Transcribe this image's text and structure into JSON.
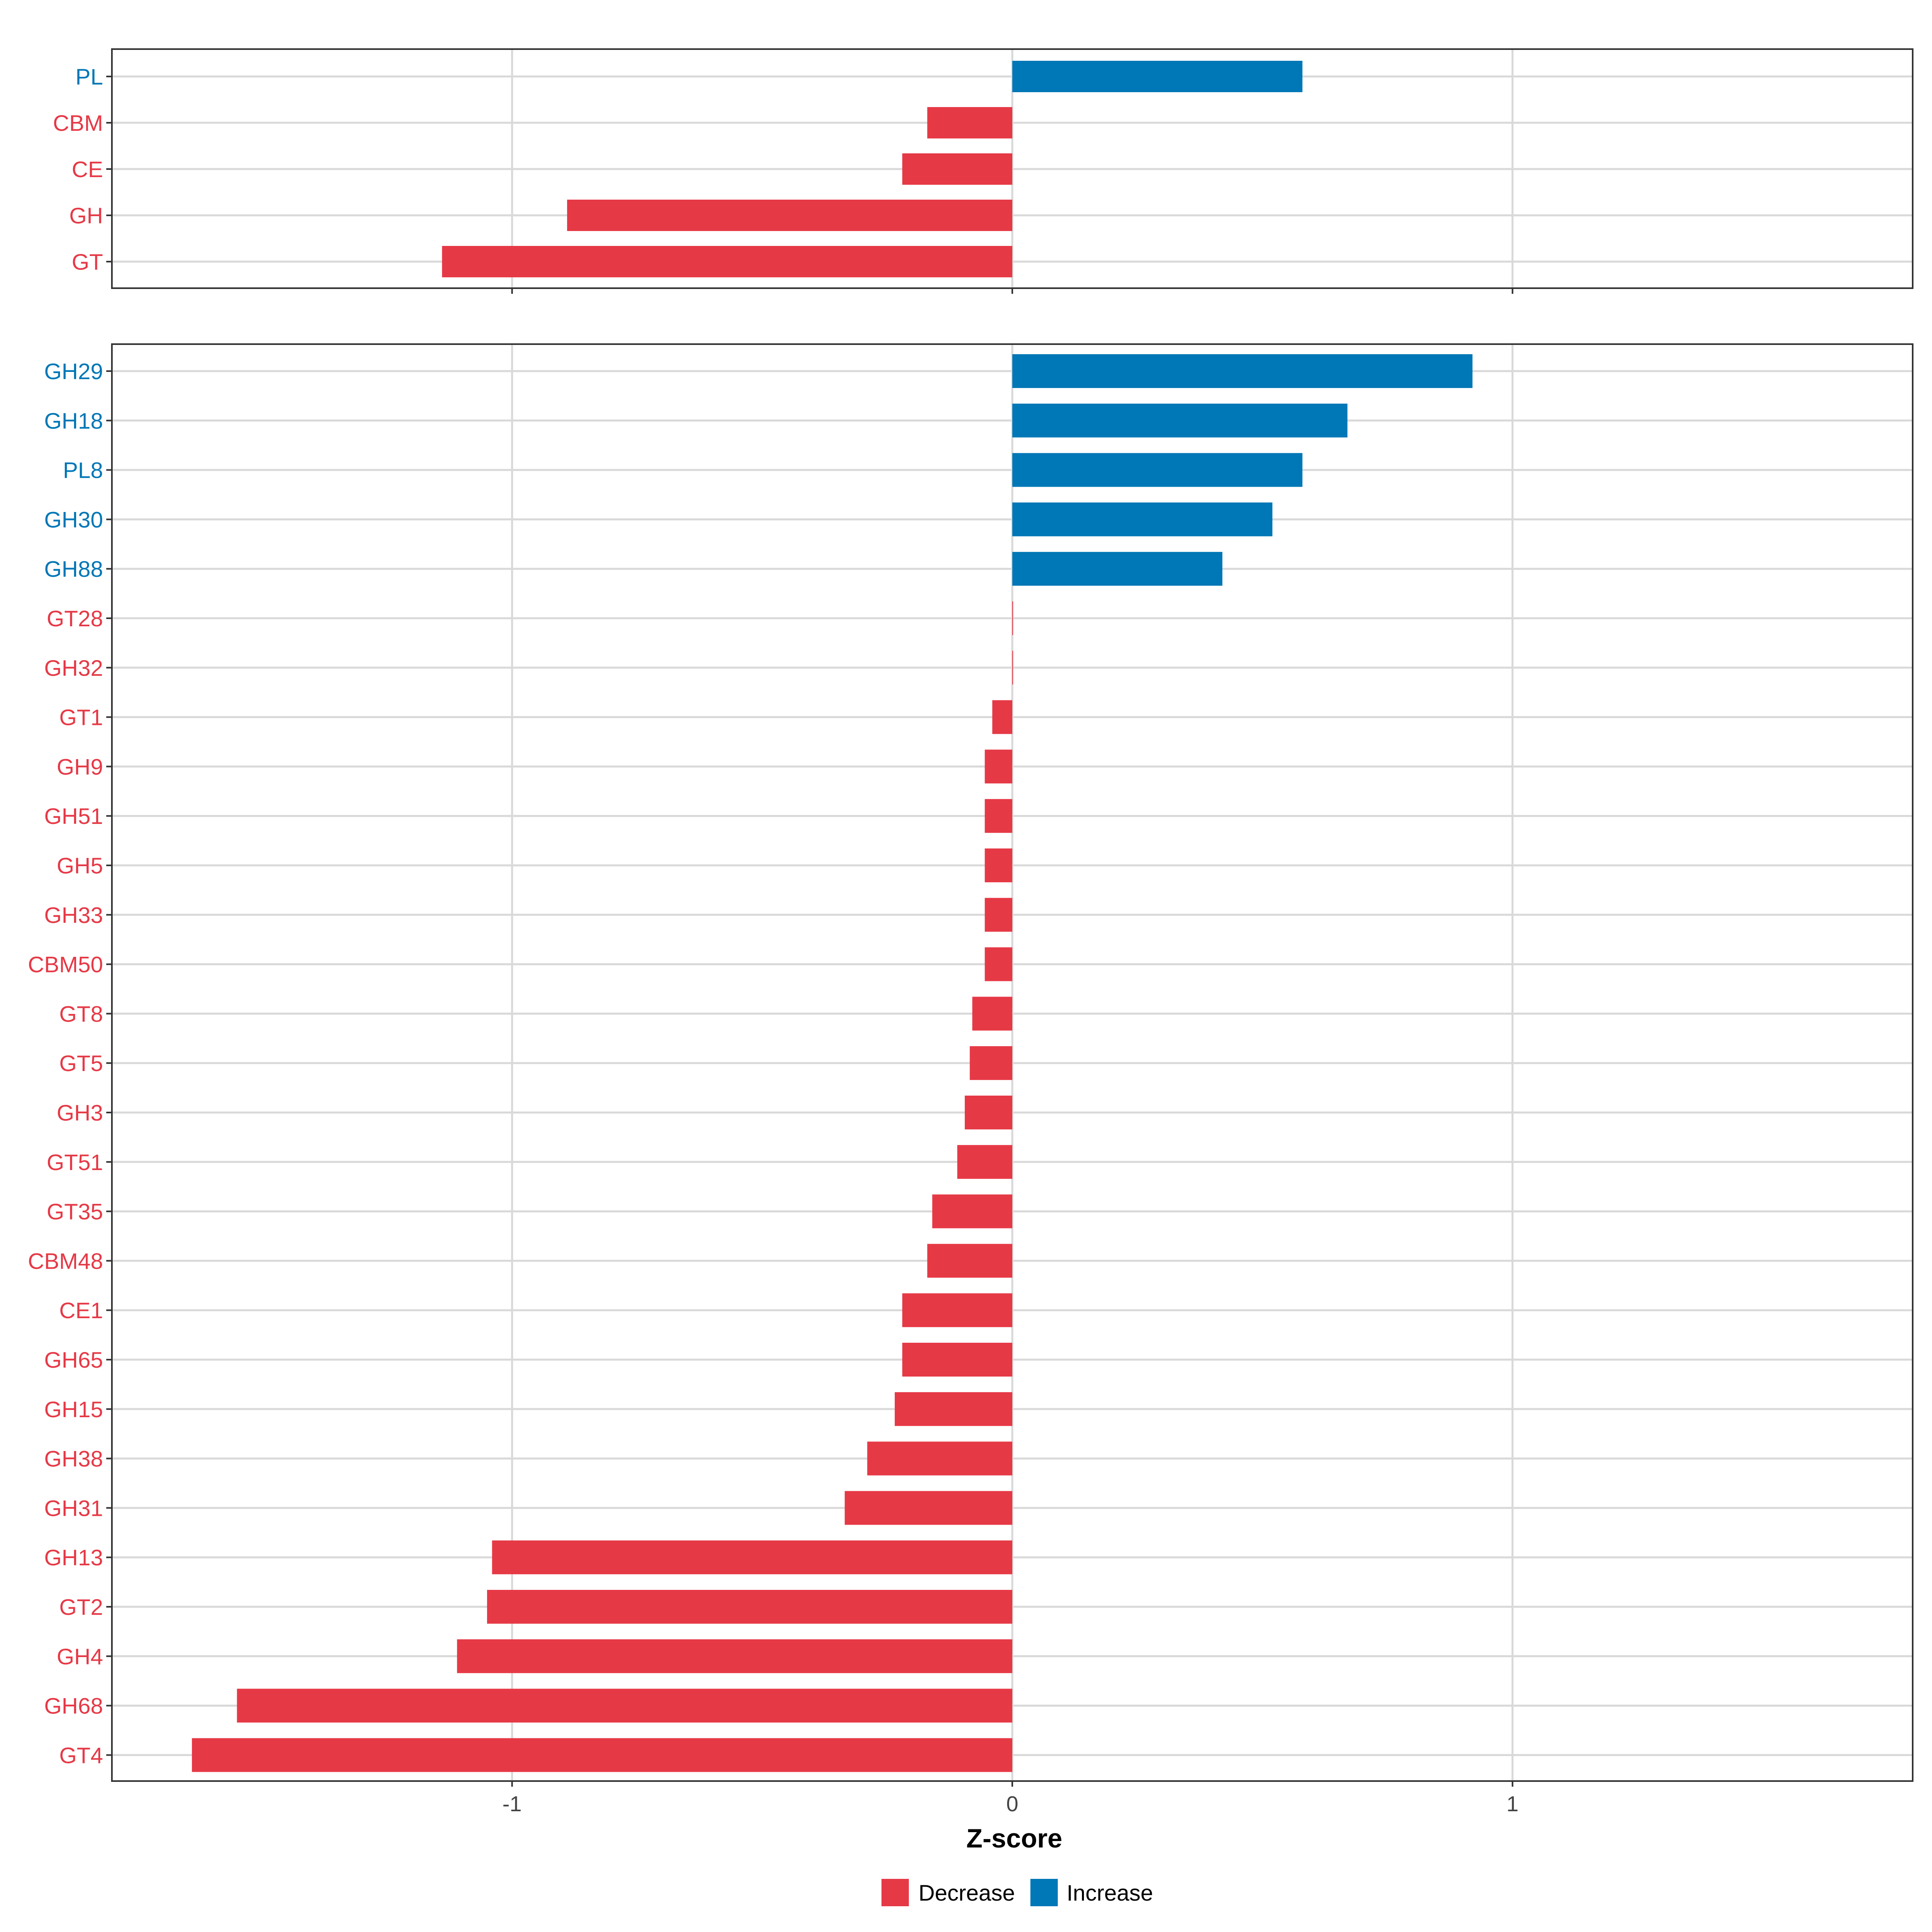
{
  "chart_data": [
    {
      "type": "bar",
      "orientation": "horizontal",
      "panel": "top",
      "categories": [
        "PL",
        "CBM",
        "CE",
        "GH",
        "GT"
      ],
      "values": [
        0.58,
        -0.17,
        -0.22,
        -0.89,
        -1.14
      ],
      "xlim": [
        -1.8,
        1.8
      ],
      "xticks": [
        -1,
        0,
        1
      ],
      "grid": true
    },
    {
      "type": "bar",
      "orientation": "horizontal",
      "panel": "bottom",
      "categories": [
        "GH29",
        "GH18",
        "PL8",
        "GH30",
        "GH88",
        "GT28",
        "GH32",
        "GT1",
        "GH9",
        "GH51",
        "GH5",
        "GH33",
        "CBM50",
        "GT8",
        "GT5",
        "GH3",
        "GT51",
        "GT35",
        "CBM48",
        "CE1",
        "GH65",
        "GH15",
        "GH38",
        "GH31",
        "GH13",
        "GT2",
        "GH4",
        "GH68",
        "GT4"
      ],
      "values": [
        0.92,
        0.67,
        0.58,
        0.52,
        0.42,
        0.0,
        0.0,
        -0.04,
        -0.055,
        -0.055,
        -0.055,
        -0.055,
        -0.055,
        -0.08,
        -0.085,
        -0.095,
        -0.11,
        -0.16,
        -0.17,
        -0.22,
        -0.22,
        -0.235,
        -0.29,
        -0.335,
        -1.04,
        -1.05,
        -1.11,
        -1.55,
        -1.64
      ],
      "xlim": [
        -1.8,
        1.8
      ],
      "xticks": [
        -1,
        0,
        1
      ],
      "tick_labels": [
        "-1",
        "0",
        "1"
      ],
      "xlabel": "Z-score",
      "grid": true
    }
  ],
  "legend": {
    "placement": "bottom",
    "items": [
      {
        "label": "Decrease",
        "color": "#E63946"
      },
      {
        "label": "Increase",
        "color": "#0077B6"
      }
    ]
  },
  "colors": {
    "decrease": "#E63946",
    "increase": "#0077B6",
    "grid": "#D9D9D9",
    "frame": "#333333"
  }
}
